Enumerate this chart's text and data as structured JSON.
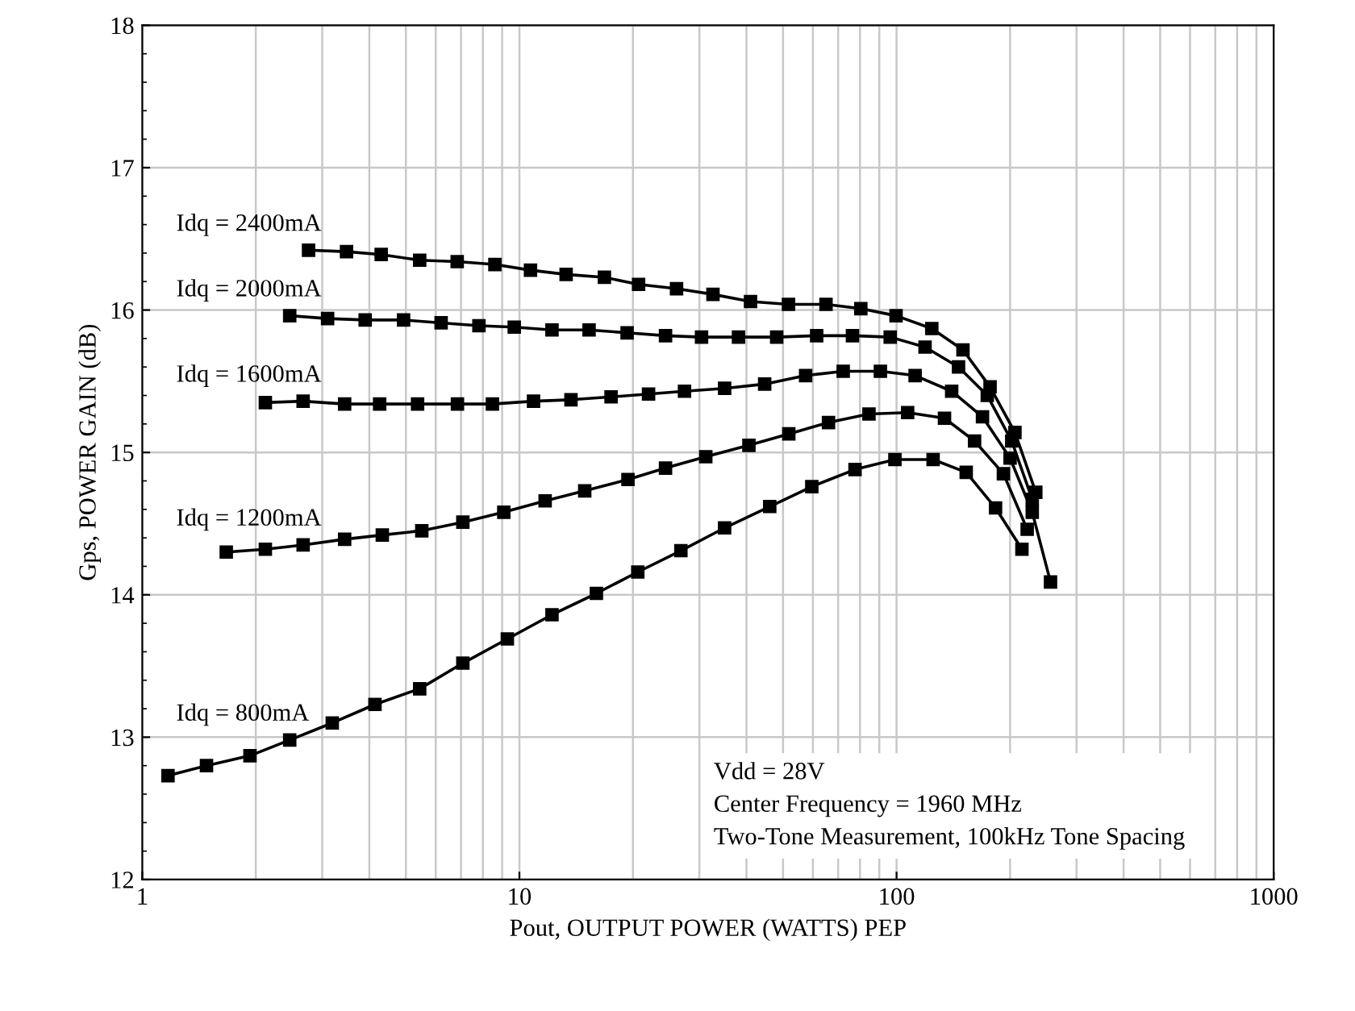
{
  "chart_data": {
    "type": "line",
    "xlabel": "Pout, OUTPUT POWER (WATTS) PEP",
    "ylabel": "Gps, POWER GAIN (dB)",
    "log": "x",
    "xlim": [
      1,
      1000
    ],
    "xticks": [
      1,
      10,
      100,
      1000
    ],
    "ylim": [
      12,
      18
    ],
    "yticks": [
      12,
      13,
      14,
      15,
      16,
      17,
      18
    ],
    "grid": true,
    "marker": "square",
    "line_style": "solid",
    "legend": false,
    "annotations": [
      "Vdd = 28V",
      "Center Frequency = 1960 MHz",
      "Two-Tone Measurement, 100kHz Tone Spacing"
    ],
    "series": [
      {
        "name": "Idq = 2400mA",
        "color": "#000000",
        "x": [
          2.76,
          3.48,
          4.3,
          5.44,
          6.84,
          8.61,
          10.7,
          13.3,
          16.8,
          20.7,
          26.1,
          32.6,
          41.0,
          51.7,
          65.0,
          80.4,
          99.7,
          124,
          150,
          177,
          206,
          234
        ],
        "values": [
          16.42,
          16.41,
          16.39,
          16.35,
          16.34,
          16.32,
          16.28,
          16.25,
          16.23,
          16.18,
          16.15,
          16.11,
          16.06,
          16.04,
          16.04,
          16.01,
          15.96,
          15.87,
          15.72,
          15.46,
          15.14,
          14.72
        ]
      },
      {
        "name": "Idq = 2000mA",
        "color": "#000000",
        "x": [
          2.46,
          3.1,
          3.9,
          4.93,
          6.2,
          7.81,
          9.69,
          12.2,
          15.3,
          19.3,
          24.4,
          30.4,
          38.1,
          48.1,
          61.4,
          76.4,
          96.2,
          119,
          146,
          174,
          202,
          229
        ],
        "values": [
          15.96,
          15.94,
          15.93,
          15.93,
          15.91,
          15.89,
          15.88,
          15.86,
          15.86,
          15.84,
          15.82,
          15.81,
          15.81,
          15.81,
          15.82,
          15.82,
          15.81,
          15.74,
          15.6,
          15.4,
          15.08,
          14.67
        ]
      },
      {
        "name": "Idq = 1600mA",
        "color": "#000000",
        "x": [
          2.12,
          2.67,
          3.44,
          4.26,
          5.37,
          6.85,
          8.48,
          10.9,
          13.7,
          17.5,
          22.0,
          27.4,
          35.0,
          44.7,
          57.4,
          72.2,
          90.6,
          112,
          140,
          169,
          200,
          229,
          256
        ],
        "values": [
          15.35,
          15.36,
          15.34,
          15.34,
          15.34,
          15.34,
          15.34,
          15.36,
          15.37,
          15.39,
          15.41,
          15.43,
          15.45,
          15.48,
          15.54,
          15.57,
          15.57,
          15.54,
          15.43,
          15.25,
          14.96,
          14.58,
          14.09
        ]
      },
      {
        "name": "Idq = 1200mA",
        "color": "#000000",
        "x": [
          1.67,
          2.12,
          2.67,
          3.44,
          4.33,
          5.51,
          7.08,
          9.09,
          11.7,
          14.9,
          19.4,
          24.4,
          31.2,
          40.6,
          51.8,
          66.0,
          84.5,
          107,
          134,
          161,
          192,
          222
        ],
        "values": [
          14.3,
          14.32,
          14.35,
          14.39,
          14.42,
          14.45,
          14.51,
          14.58,
          14.66,
          14.73,
          14.81,
          14.89,
          14.97,
          15.05,
          15.13,
          15.21,
          15.27,
          15.28,
          15.24,
          15.08,
          14.85,
          14.46
        ]
      },
      {
        "name": "Idq = 800mA",
        "color": "#000000",
        "x": [
          1.17,
          1.48,
          1.93,
          2.46,
          3.19,
          4.14,
          5.44,
          7.08,
          9.29,
          12.2,
          16.0,
          20.6,
          26.8,
          35.0,
          46.1,
          59.6,
          77.6,
          99.0,
          125,
          153,
          183,
          215
        ],
        "values": [
          12.73,
          12.8,
          12.87,
          12.98,
          13.1,
          13.23,
          13.34,
          13.52,
          13.69,
          13.86,
          14.01,
          14.16,
          14.31,
          14.47,
          14.62,
          14.76,
          14.88,
          14.95,
          14.95,
          14.86,
          14.61,
          14.32
        ]
      }
    ]
  }
}
